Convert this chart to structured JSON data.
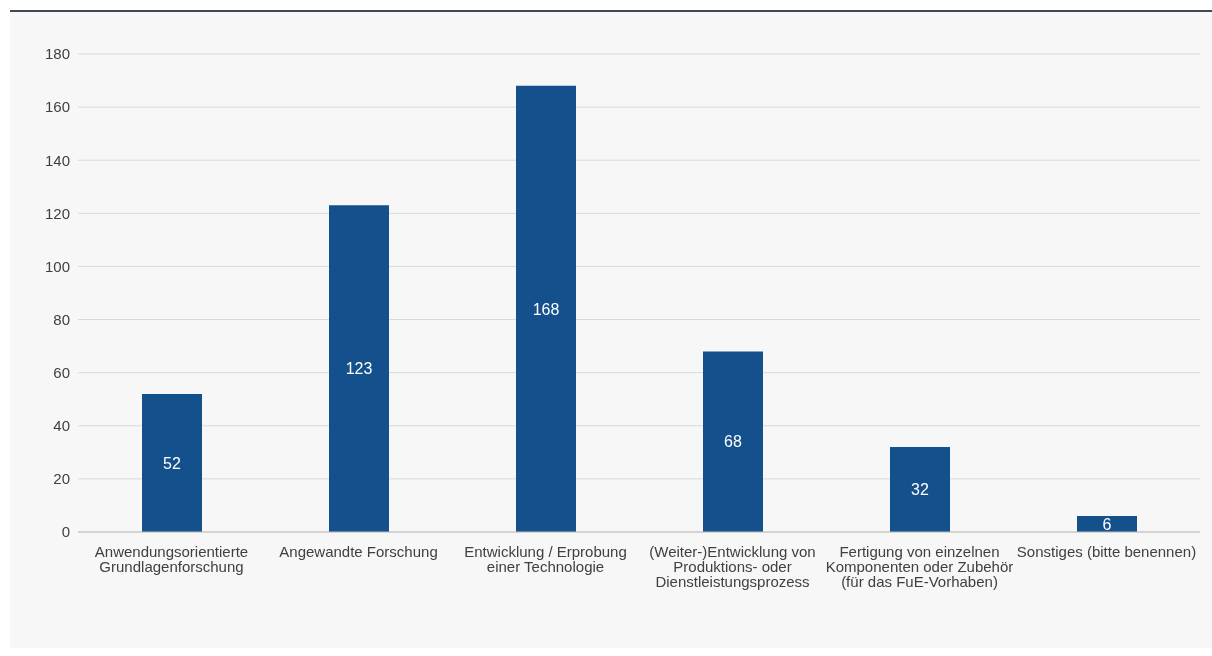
{
  "chart_data": {
    "type": "bar",
    "categories": [
      "Anwendungsorientierte Grundlagenforschung",
      "Angewandte Forschung",
      "Entwicklung / Erprobung einer Technologie",
      "(Weiter-)Entwicklung von Produktions- oder Dienstleistungsprozess",
      "Fertigung von einzelnen Komponenten oder Zubehör (für das FuE-Vorhaben)",
      "Sonstiges (bitte benennen)"
    ],
    "values": [
      52,
      123,
      168,
      68,
      32,
      6
    ],
    "color": "#14508c",
    "ylim": [
      0,
      180
    ],
    "yticks": [
      0,
      20,
      40,
      60,
      80,
      100,
      120,
      140,
      160,
      180
    ],
    "grid": "y",
    "data_labels": true
  }
}
